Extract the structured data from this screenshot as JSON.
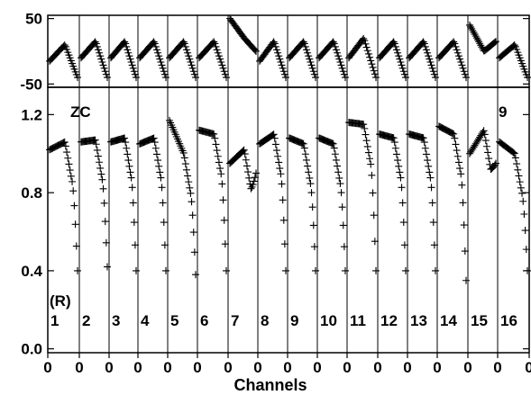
{
  "chart_data": {
    "type": "scatter",
    "xlabel": "Channels",
    "x_tick_labels": [
      "0",
      "0",
      "0",
      "0",
      "0",
      "0",
      "0",
      "0",
      "0",
      "0",
      "0",
      "0",
      "0",
      "0",
      "0",
      "0",
      "0"
    ],
    "channels": [
      "1",
      "2",
      "3",
      "4",
      "5",
      "6",
      "7",
      "8",
      "9",
      "10",
      "11",
      "12",
      "13",
      "14",
      "15",
      "16"
    ],
    "panels": [
      {
        "id": "top",
        "ylim": [
          -55,
          55
        ],
        "yticks": [
          50,
          -50
        ],
        "ytick_labels": [
          "50",
          "-50"
        ],
        "channel_curves": [
          {
            "start": -15,
            "peak": 10,
            "end": -40
          },
          {
            "start": -10,
            "peak": 15,
            "end": -40
          },
          {
            "start": -10,
            "peak": 15,
            "end": -40
          },
          {
            "start": -10,
            "peak": 15,
            "end": -40
          },
          {
            "start": -10,
            "peak": 15,
            "end": -40
          },
          {
            "start": -10,
            "peak": 15,
            "end": -40
          },
          {
            "start": 50,
            "peak": 20,
            "end": 0
          },
          {
            "start": -15,
            "peak": 15,
            "end": -40
          },
          {
            "start": -10,
            "peak": 15,
            "end": -40
          },
          {
            "start": -10,
            "peak": 15,
            "end": -40
          },
          {
            "start": -10,
            "peak": 20,
            "end": -40
          },
          {
            "start": -10,
            "peak": 15,
            "end": -40
          },
          {
            "start": -10,
            "peak": 15,
            "end": -40
          },
          {
            "start": -10,
            "peak": 15,
            "end": -40
          },
          {
            "start": 40,
            "peak": 0,
            "end": 15
          },
          {
            "start": -10,
            "peak": 10,
            "end": -40
          }
        ]
      },
      {
        "id": "bottom",
        "ylim": [
          -0.02,
          1.34
        ],
        "yticks": [
          1.2,
          0.8,
          0.4,
          0.0
        ],
        "ytick_labels": [
          "1.2",
          "0.8",
          "0.4",
          "0.0"
        ],
        "channel_curves": [
          {
            "start": 1.02,
            "peak": 1.06,
            "end": 0.4
          },
          {
            "start": 1.06,
            "peak": 1.07,
            "end": 0.42
          },
          {
            "start": 1.06,
            "peak": 1.08,
            "end": 0.4
          },
          {
            "start": 1.05,
            "peak": 1.08,
            "end": 0.4
          },
          {
            "start": 1.17,
            "peak": 1.0,
            "end": 0.38
          },
          {
            "start": 1.12,
            "peak": 1.1,
            "end": 0.4
          },
          {
            "start": 0.95,
            "peak": 1.02,
            "end": 0.9
          },
          {
            "start": 1.05,
            "peak": 1.1,
            "end": 0.4
          },
          {
            "start": 1.08,
            "peak": 1.05,
            "end": 0.4
          },
          {
            "start": 1.08,
            "peak": 1.05,
            "end": 0.4
          },
          {
            "start": 1.16,
            "peak": 1.15,
            "end": 0.4
          },
          {
            "start": 1.1,
            "peak": 1.08,
            "end": 0.4
          },
          {
            "start": 1.1,
            "peak": 1.08,
            "end": 0.4
          },
          {
            "start": 1.14,
            "peak": 1.1,
            "end": 0.35
          },
          {
            "start": 1.0,
            "peak": 1.12,
            "end": 0.95
          },
          {
            "start": 1.06,
            "peak": 1.0,
            "end": 0.4
          }
        ]
      }
    ],
    "annotations": {
      "top_left": "ZC",
      "top_right": "9",
      "bottom_left": "(R)"
    },
    "marker": "+",
    "grid": false
  }
}
